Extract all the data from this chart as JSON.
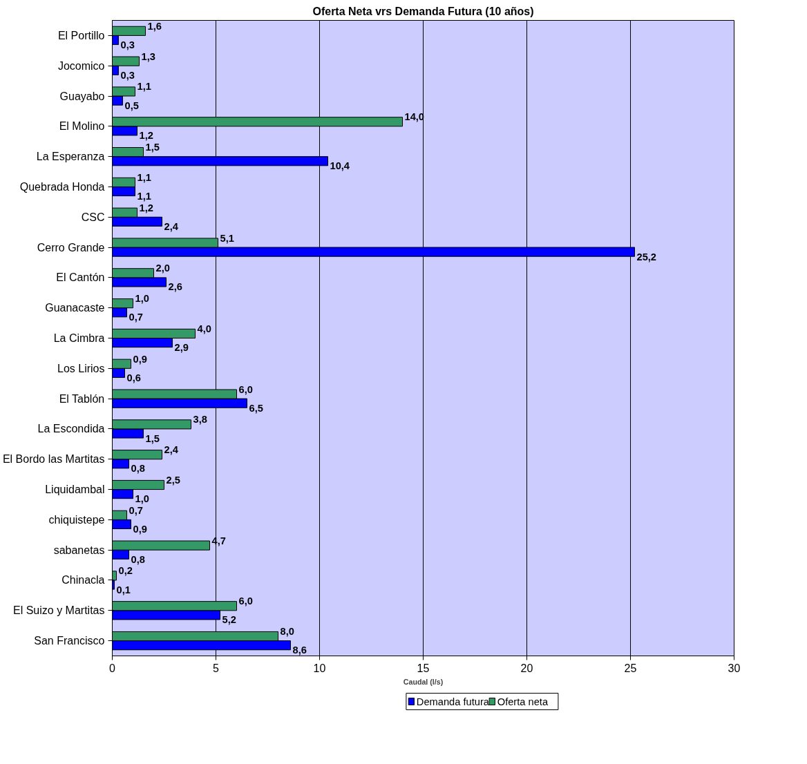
{
  "chart_data": {
    "type": "bar",
    "orientation": "horizontal",
    "title": "Oferta Neta vrs Demanda Futura (10 años)",
    "xlabel": "Caudal (l/s)",
    "categories": [
      "El Portillo",
      "Jocomico",
      "Guayabo",
      "El Molino",
      "La Esperanza",
      "Quebrada Honda",
      "CSC",
      "Cerro Grande",
      "El Cantón",
      "Guanacaste",
      "La Cimbra",
      "Los Lirios",
      "El Tablón",
      "La Escondida",
      "El Bordo las Martitas",
      "Liquidambal",
      "chiquistepe",
      "sabanetas",
      "Chinacla",
      "El Suizo y Martitas",
      "San Francisco"
    ],
    "series": [
      {
        "name": "Demanda futura",
        "color": "#0000ff",
        "values": [
          0.3,
          0.3,
          0.5,
          1.2,
          10.4,
          1.1,
          2.4,
          25.2,
          2.6,
          0.7,
          2.9,
          0.6,
          6.5,
          1.5,
          0.8,
          1.0,
          0.9,
          0.8,
          0.1,
          5.2,
          8.6
        ],
        "value_labels": [
          "0,3",
          "0,3",
          "0,5",
          "1,2",
          "10,4",
          "1,1",
          "2,4",
          "25,2",
          "2,6",
          "0,7",
          "2,9",
          "0,6",
          "6,5",
          "1,5",
          "0,8",
          "1,0",
          "0,9",
          "0,8",
          "0,1",
          "5,2",
          "8,6"
        ]
      },
      {
        "name": "Oferta neta",
        "color": "#339966",
        "values": [
          1.6,
          1.3,
          1.1,
          14.0,
          1.5,
          1.1,
          1.2,
          5.1,
          2.0,
          1.0,
          4.0,
          0.9,
          6.0,
          3.8,
          2.4,
          2.5,
          0.7,
          4.7,
          0.2,
          6.0,
          8.0
        ],
        "value_labels": [
          "1,6",
          "1,3",
          "1,1",
          "14,0",
          "1,5",
          "1,1",
          "1,2",
          "5,1",
          "2,0",
          "1,0",
          "4,0",
          "0,9",
          "6,0",
          "3,8",
          "2,4",
          "2,5",
          "0,7",
          "4,7",
          "0,2",
          "6,0",
          "8,0"
        ]
      }
    ],
    "xlim": [
      0,
      30
    ],
    "xticks": [
      0,
      5,
      10,
      15,
      20,
      25,
      30
    ],
    "grid": "x",
    "legend": "bottom"
  }
}
